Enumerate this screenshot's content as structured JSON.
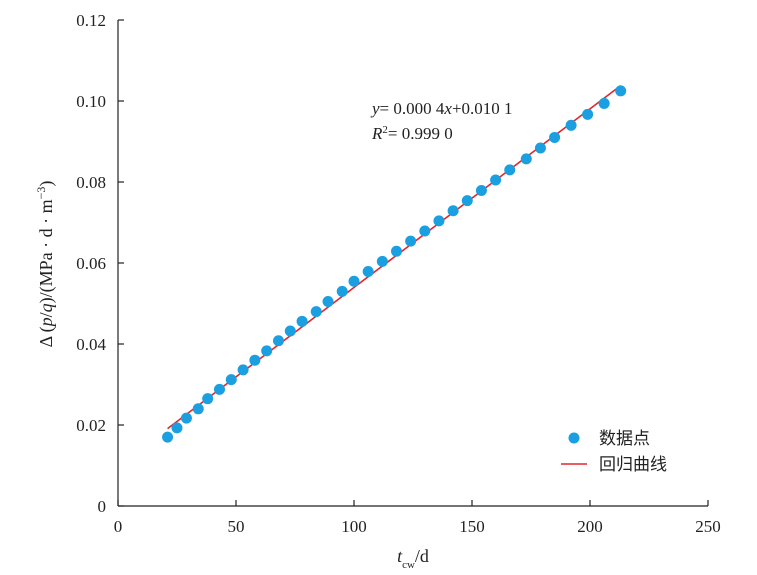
{
  "chart_data": {
    "type": "scatter",
    "title": "",
    "xlabel": "t_cw/d",
    "ylabel": "Δ (p/q)/(MPa · d · m⁻³)",
    "xlim": [
      0,
      250
    ],
    "ylim": [
      0,
      0.12
    ],
    "x_ticks": [
      "0",
      "50",
      "100",
      "150",
      "200",
      "250"
    ],
    "y_ticks": [
      "0",
      "0.02",
      "0.04",
      "0.06",
      "0.08",
      "0.10",
      "0.12"
    ],
    "grid": false,
    "legend_position": "bottom-right",
    "series": [
      {
        "name": "数据点",
        "kind": "scatter",
        "color": "#1a9fe0",
        "points": [
          [
            21,
            0.017
          ],
          [
            25,
            0.0193
          ],
          [
            29,
            0.0217
          ],
          [
            34,
            0.024
          ],
          [
            38,
            0.0265
          ],
          [
            43,
            0.0288
          ],
          [
            48,
            0.0312
          ],
          [
            53,
            0.0336
          ],
          [
            58,
            0.036
          ],
          [
            63,
            0.0383
          ],
          [
            68,
            0.0408
          ],
          [
            73,
            0.0432
          ],
          [
            78,
            0.0456
          ],
          [
            84,
            0.048
          ],
          [
            89,
            0.0505
          ],
          [
            95,
            0.053
          ],
          [
            100,
            0.0555
          ],
          [
            106,
            0.0579
          ],
          [
            112,
            0.0604
          ],
          [
            118,
            0.0629
          ],
          [
            124,
            0.0654
          ],
          [
            130,
            0.0679
          ],
          [
            136,
            0.0704
          ],
          [
            142,
            0.0729
          ],
          [
            148,
            0.0754
          ],
          [
            154,
            0.0779
          ],
          [
            160,
            0.0805
          ],
          [
            166,
            0.083
          ],
          [
            173,
            0.0857
          ],
          [
            179,
            0.0884
          ],
          [
            185,
            0.091
          ],
          [
            192,
            0.094
          ],
          [
            199,
            0.0967
          ],
          [
            206,
            0.0994
          ],
          [
            213,
            0.1025
          ]
        ]
      },
      {
        "name": "回归曲线",
        "kind": "line",
        "color": "#e0262e",
        "points": [
          [
            21,
            0.0191
          ],
          [
            213,
            0.1038
          ]
        ]
      }
    ],
    "annotation": {
      "equation": "y= 0.000 4x+0.010 1",
      "r2_prefix": "R",
      "r2_sup": "2",
      "r2_value": "= 0.999 0"
    }
  }
}
